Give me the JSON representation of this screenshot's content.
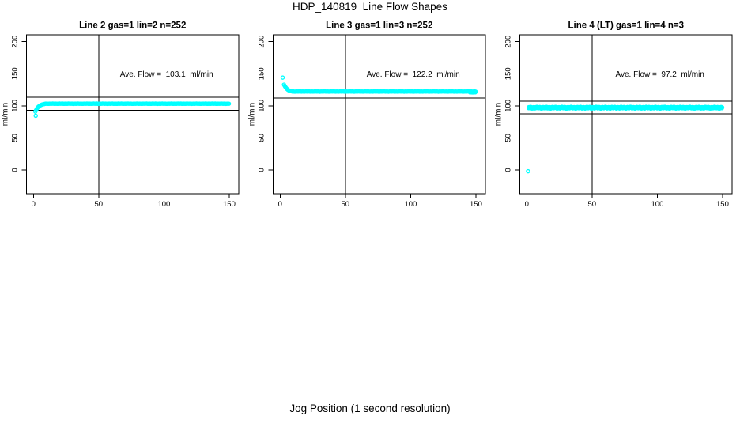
{
  "page": {
    "title": "HDP_140819  Line Flow Shapes",
    "xlabel": "Jog Position (1 second resolution)"
  },
  "chart_data": [
    {
      "type": "scatter",
      "title": "Line 2 gas=1 lin=2 n=252",
      "ylabel": "ml/min",
      "annotation": "Ave. Flow =  103.1  ml/min",
      "annotation_pos": {
        "x": 102,
        "y": 150
      },
      "ave_flow_ml_min": 103.1,
      "n": 252,
      "marker": "open-circle",
      "marker_color": "#00FFFF",
      "axis_color": "#000000",
      "xticks": [
        0,
        50,
        100,
        150
      ],
      "yticks": [
        0,
        50,
        100,
        150,
        200
      ],
      "xlim": [
        -5.3,
        157.3
      ],
      "ylim": [
        -37,
        210.7
      ],
      "vline_x": 50,
      "hlines_y": [
        113.1,
        93.1
      ],
      "outlier_points": [
        [
          1.8,
          84.5
        ]
      ],
      "ramp_points": [
        [
          1.5,
          91.0
        ],
        [
          2,
          93.0
        ],
        [
          2.5,
          94.8
        ],
        [
          3,
          96.4
        ],
        [
          3.5,
          97.7
        ],
        [
          4,
          98.8
        ],
        [
          4.5,
          99.6
        ],
        [
          5,
          100.3
        ],
        [
          5.5,
          100.9
        ],
        [
          6,
          101.4
        ],
        [
          6.5,
          101.8
        ],
        [
          7,
          102.2
        ],
        [
          7.5,
          102.5
        ],
        [
          8,
          102.7
        ],
        [
          8.5,
          102.9
        ],
        [
          9,
          103.1
        ]
      ],
      "plateau_runs": [
        {
          "x_start": 9.5,
          "x_end": 150,
          "step": 0.75,
          "y": 103.3,
          "wobble": 0.25
        }
      ]
    },
    {
      "type": "scatter",
      "title": "Line 3 gas=1 lin=3 n=252",
      "ylabel": "ml/min",
      "annotation": "Ave. Flow =  122.2  ml/min",
      "annotation_pos": {
        "x": 102,
        "y": 150
      },
      "ave_flow_ml_min": 122.2,
      "n": 252,
      "marker": "open-circle",
      "marker_color": "#00FFFF",
      "axis_color": "#000000",
      "xticks": [
        0,
        50,
        100,
        150
      ],
      "yticks": [
        0,
        50,
        100,
        150,
        200
      ],
      "xlim": [
        -5.3,
        157.3
      ],
      "ylim": [
        -37,
        210.7
      ],
      "vline_x": 50,
      "hlines_y": [
        132.2,
        112.2
      ],
      "outlier_points": [
        [
          2,
          144
        ]
      ],
      "ramp_points": [
        [
          3,
          133.0
        ],
        [
          3.5,
          131.2
        ],
        [
          4,
          129.6
        ],
        [
          4.5,
          128.2
        ],
        [
          5,
          126.9
        ],
        [
          5.5,
          125.9
        ],
        [
          6,
          125.0
        ],
        [
          6.5,
          124.3
        ],
        [
          7,
          123.8
        ],
        [
          7.5,
          123.4
        ],
        [
          8,
          123.0
        ],
        [
          8.5,
          122.8
        ],
        [
          9,
          122.6
        ]
      ],
      "plateau_runs": [
        {
          "x_start": 9.5,
          "x_end": 150,
          "step": 0.75,
          "y": 122.3,
          "wobble": 0.3
        },
        {
          "x_start": 145.5,
          "x_end": 150,
          "step": 0.8,
          "y": 121.0,
          "wobble": 0.3
        }
      ]
    },
    {
      "type": "scatter",
      "title": "Line 4 (LT) gas=1 lin=4 n=3",
      "ylabel": "ml/min",
      "annotation": "Ave. Flow =  97.2  ml/min",
      "annotation_pos": {
        "x": 102,
        "y": 150
      },
      "ave_flow_ml_min": 97.2,
      "n": 3,
      "marker": "open-circle",
      "marker_color": "#00FFFF",
      "axis_color": "#000000",
      "xticks": [
        0,
        50,
        100,
        150
      ],
      "yticks": [
        0,
        50,
        100,
        150,
        200
      ],
      "xlim": [
        -5.3,
        157.3
      ],
      "ylim": [
        -37,
        210.7
      ],
      "vline_x": 50,
      "hlines_y": [
        107.2,
        87.2
      ],
      "outlier_points": [
        [
          1,
          -2
        ]
      ],
      "ramp_points": [],
      "plateau_runs": [
        {
          "x_start": 1.5,
          "x_end": 150,
          "step": 0.6,
          "y": 97.8,
          "wobble": 0.7
        },
        {
          "x_start": 1.5,
          "x_end": 150,
          "step": 0.8,
          "y": 96.4,
          "wobble": 0.9
        }
      ]
    }
  ]
}
